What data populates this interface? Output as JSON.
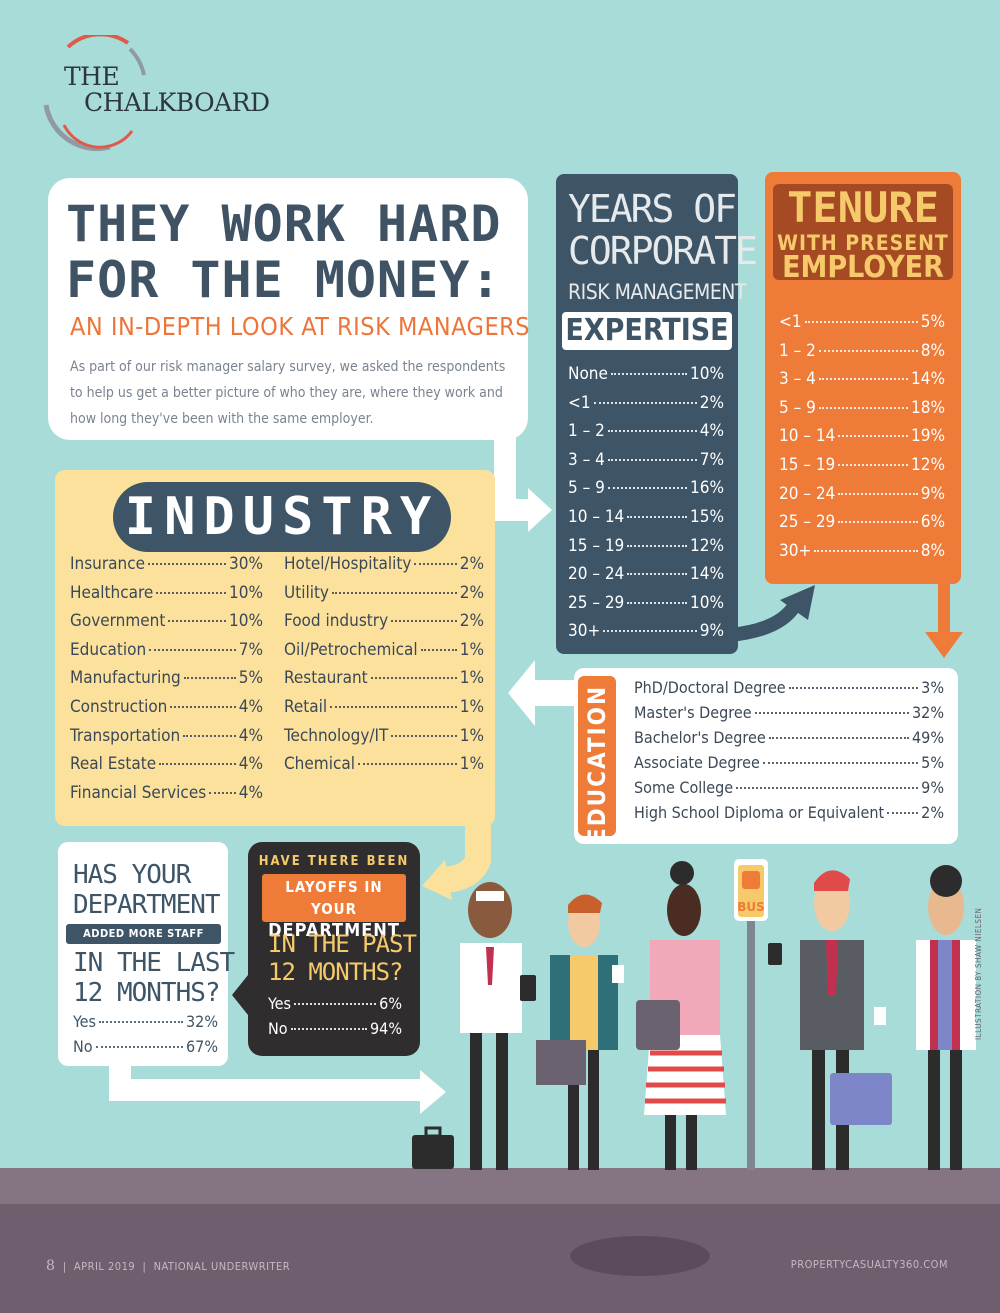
{
  "logo": {
    "line1": "THE",
    "line2": "CHALKBOARD"
  },
  "intro": {
    "title_line1": "THEY WORK HARD",
    "title_line2": "FOR THE MONEY:",
    "subtitle": "AN IN-DEPTH LOOK AT RISK MANAGERS",
    "body": "As part of our risk manager salary survey, we asked the respondents to help us get a better picture of who they are, where they work and how long they've been with the same employer."
  },
  "years": {
    "title_line1": "YEARS OF",
    "title_line2": "CORPORATE",
    "title_line3": "RISK MANAGEMENT",
    "title_line4": "EXPERTISE",
    "rows": [
      {
        "label": "None",
        "value": "10%"
      },
      {
        "label": "<1",
        "value": "2%"
      },
      {
        "label": "1 – 2",
        "value": "4%"
      },
      {
        "label": "3 – 4",
        "value": "7%"
      },
      {
        "label": "5 – 9",
        "value": "16%"
      },
      {
        "label": "10 – 14",
        "value": "15%"
      },
      {
        "label": "15 – 19",
        "value": "12%"
      },
      {
        "label": "20 – 24",
        "value": "14%"
      },
      {
        "label": "25 – 29",
        "value": "10%"
      },
      {
        "label": "30+",
        "value": "9%"
      }
    ]
  },
  "tenure": {
    "title_line1": "TENURE",
    "title_line2": "WITH PRESENT",
    "title_line3": "EMPLOYER",
    "rows": [
      {
        "label": "<1",
        "value": "5%"
      },
      {
        "label": "1 – 2",
        "value": "8%"
      },
      {
        "label": "3 – 4",
        "value": "14%"
      },
      {
        "label": "5 – 9",
        "value": "18%"
      },
      {
        "label": "10 – 14",
        "value": "19%"
      },
      {
        "label": "15 – 19",
        "value": "12%"
      },
      {
        "label": "20 – 24",
        "value": "9%"
      },
      {
        "label": "25 – 29",
        "value": "6%"
      },
      {
        "label": "30+",
        "value": "8%"
      }
    ]
  },
  "industry": {
    "title": "INDUSTRY",
    "left": [
      {
        "label": "Insurance",
        "value": "30%"
      },
      {
        "label": "Healthcare",
        "value": "10%"
      },
      {
        "label": "Government",
        "value": "10%"
      },
      {
        "label": "Education",
        "value": "7%"
      },
      {
        "label": "Manufacturing",
        "value": "5%"
      },
      {
        "label": "Construction",
        "value": "4%"
      },
      {
        "label": "Transportation",
        "value": "4%"
      },
      {
        "label": "Real Estate",
        "value": "4%"
      },
      {
        "label": "Financial Services",
        "value": "4%"
      }
    ],
    "right": [
      {
        "label": "Hotel/Hospitality",
        "value": "2%"
      },
      {
        "label": "Utility",
        "value": "2%"
      },
      {
        "label": "Food industry",
        "value": "2%"
      },
      {
        "label": "Oil/Petrochemical",
        "value": "1%"
      },
      {
        "label": "Restaurant",
        "value": "1%"
      },
      {
        "label": "Retail",
        "value": "1%"
      },
      {
        "label": "Technology/IT",
        "value": "1%"
      },
      {
        "label": "Chemical",
        "value": "1%"
      }
    ]
  },
  "education": {
    "title": "EDUCATION",
    "rows": [
      {
        "label": "PhD/Doctoral Degree",
        "value": "3%"
      },
      {
        "label": "Master's Degree",
        "value": "32%"
      },
      {
        "label": "Bachelor's Degree",
        "value": "49%"
      },
      {
        "label": "Associate Degree",
        "value": "5%"
      },
      {
        "label": "Some College",
        "value": "9%"
      },
      {
        "label": "High School Diploma or Equivalent",
        "value": "2%"
      }
    ]
  },
  "staff": {
    "line1": "HAS YOUR",
    "line2": "DEPARTMENT",
    "badge": "ADDED MORE STAFF",
    "line3": "IN THE LAST",
    "line4": "12 MONTHS?",
    "rows": [
      {
        "label": "Yes",
        "value": "32%"
      },
      {
        "label": "No",
        "value": "67%"
      }
    ]
  },
  "layoffs": {
    "line1": "HAVE THERE BEEN",
    "badge1": "LAYOFFS IN YOUR",
    "badge2": "DEPARTMENT",
    "line2": "IN THE PAST",
    "line3": "12 MONTHS?",
    "rows": [
      {
        "label": "Yes",
        "value": "6%"
      },
      {
        "label": "No",
        "value": "94%"
      }
    ]
  },
  "bus_sign": "BUS",
  "footer": {
    "page": "8",
    "issue": "APRIL 2019",
    "publication": "NATIONAL UNDERWRITER",
    "site": "PROPERTYCASUALTY360.COM",
    "credit": "ILLUSTRATION BY SHAW NIELSEN"
  },
  "colors": {
    "background": "#a8dcd9",
    "navy": "#3e5567",
    "orange": "#ef7b39",
    "yellow": "#fbe19c",
    "dark": "#2f2d2e"
  }
}
